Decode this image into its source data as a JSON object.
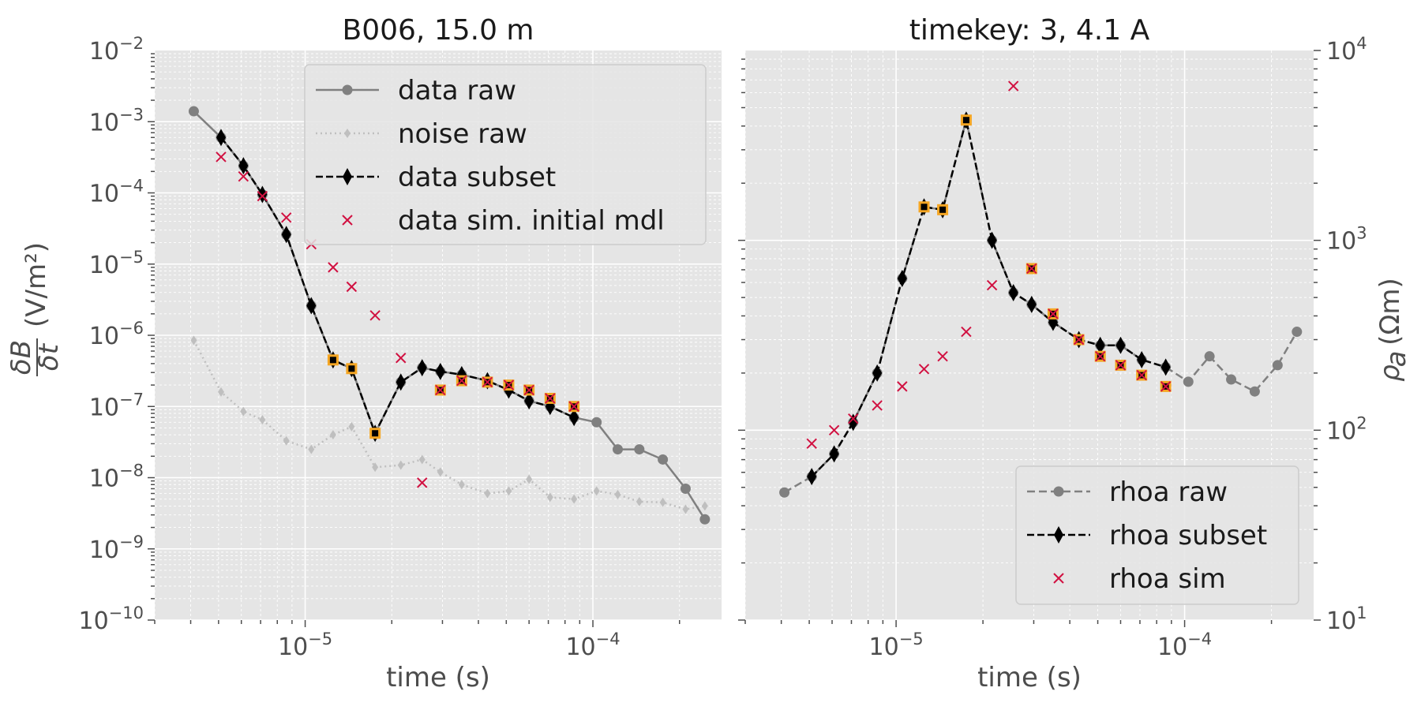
{
  "chart_data": [
    {
      "type": "line",
      "title": "B006, 15.0 m",
      "xlabel": "time (s)",
      "ylabel_frac_num": "δB",
      "ylabel_frac_den": "δt",
      "ylabel_unit": "(V/m²)",
      "xscale": "log",
      "yscale": "log",
      "xlim": [
        3e-06,
        0.00028
      ],
      "ylim": [
        1e-10,
        0.01
      ],
      "x_ticks": [
        {
          "base": "10",
          "exp": "−5",
          "value": 1e-05
        },
        {
          "base": "10",
          "exp": "−4",
          "value": 0.0001
        }
      ],
      "y_ticks": [
        {
          "base": "10",
          "exp": "−10",
          "value": 1e-10
        },
        {
          "base": "10",
          "exp": "−9",
          "value": 1e-09
        },
        {
          "base": "10",
          "exp": "−8",
          "value": 1e-08
        },
        {
          "base": "10",
          "exp": "−7",
          "value": 1e-07
        },
        {
          "base": "10",
          "exp": "−6",
          "value": 1e-06
        },
        {
          "base": "10",
          "exp": "−5",
          "value": 1e-05
        },
        {
          "base": "10",
          "exp": "−4",
          "value": 0.0001
        },
        {
          "base": "10",
          "exp": "−3",
          "value": 0.001
        },
        {
          "base": "10",
          "exp": "−2",
          "value": 0.01
        }
      ],
      "grid": true,
      "legend_position": "top-right",
      "series": [
        {
          "name": "data raw",
          "style": "raw",
          "color": "#808080",
          "x": [
            4.1e-06,
            5.1e-06,
            6.1e-06,
            7.1e-06,
            8.6e-06,
            1.05e-05,
            1.25e-05,
            1.45e-05,
            1.75e-05,
            2.15e-05,
            2.55e-05,
            2.95e-05,
            3.5e-05,
            4.3e-05,
            5.1e-05,
            6e-05,
            7.1e-05,
            8.6e-05,
            0.000103,
            0.000122,
            0.000145,
            0.000175,
            0.00021,
            0.000245
          ],
          "y": [
            0.0014,
            0.0006,
            0.00024,
            9.5e-05,
            2.6e-05,
            2.6e-06,
            4.5e-07,
            3.4e-07,
            4.2e-08,
            2.2e-07,
            3.5e-07,
            3.1e-07,
            2.8e-07,
            2.3e-07,
            1.7e-07,
            1.2e-07,
            1e-07,
            7e-08,
            6e-08,
            2.5e-08,
            2.5e-08,
            1.8e-08,
            7e-09,
            2.6e-09
          ]
        },
        {
          "name": "noise raw",
          "style": "noise",
          "color": "#bfbfbf",
          "x": [
            4.1e-06,
            5.1e-06,
            6.1e-06,
            7.1e-06,
            8.6e-06,
            1.05e-05,
            1.25e-05,
            1.45e-05,
            1.75e-05,
            2.15e-05,
            2.55e-05,
            2.95e-05,
            3.5e-05,
            4.3e-05,
            5.1e-05,
            6e-05,
            7.1e-05,
            8.6e-05,
            0.000103,
            0.000122,
            0.000145,
            0.000175,
            0.00021,
            0.000245
          ],
          "y": [
            8.5e-07,
            1.6e-07,
            8.5e-08,
            6.5e-08,
            3.3e-08,
            2.5e-08,
            4e-08,
            5.2e-08,
            1.4e-08,
            1.5e-08,
            1.8e-08,
            1.2e-08,
            8e-09,
            6e-09,
            6.5e-09,
            9.5e-09,
            5.3e-09,
            5e-09,
            6.5e-09,
            5.8e-09,
            4.6e-09,
            4.5e-09,
            3.6e-09,
            4e-09
          ]
        },
        {
          "name": "data subset",
          "style": "subset",
          "color": "#000000",
          "x": [
            5.1e-06,
            6.1e-06,
            7.1e-06,
            8.6e-06,
            1.05e-05,
            1.25e-05,
            1.45e-05,
            1.75e-05,
            2.15e-05,
            2.55e-05,
            2.95e-05,
            3.5e-05,
            4.3e-05,
            5.1e-05,
            6e-05,
            7.1e-05,
            8.6e-05
          ],
          "y": [
            0.0006,
            0.00024,
            9.5e-05,
            2.6e-05,
            2.6e-06,
            4.5e-07,
            3.4e-07,
            4.2e-08,
            2.2e-07,
            3.5e-07,
            3.1e-07,
            2.8e-07,
            2.3e-07,
            1.7e-07,
            1.2e-07,
            1e-07,
            7e-08
          ]
        },
        {
          "name": "data sim. initial mdl",
          "style": "sim",
          "color": "#d11141",
          "x": [
            5.1e-06,
            6.1e-06,
            7.1e-06,
            8.6e-06,
            1.05e-05,
            1.25e-05,
            1.45e-05,
            1.75e-05,
            2.15e-05,
            2.55e-05,
            2.95e-05,
            3.5e-05,
            4.3e-05,
            5.1e-05,
            6e-05,
            7.1e-05,
            8.6e-05
          ],
          "y": [
            0.00032,
            0.00017,
            9e-05,
            4.5e-05,
            1.9e-05,
            9e-06,
            4.8e-06,
            1.9e-06,
            4.8e-07,
            8.5e-09,
            1.7e-07,
            2.3e-07,
            2.2e-07,
            2e-07,
            1.7e-07,
            1.3e-07,
            1e-07
          ]
        }
      ],
      "highlighted_points": {
        "color": "#f5a623",
        "x": [
          1.25e-05,
          1.45e-05,
          1.75e-05,
          2.95e-05,
          3.5e-05,
          4.3e-05,
          5.1e-05,
          6e-05,
          7.1e-05,
          8.6e-05
        ],
        "y": [
          4.5e-07,
          3.4e-07,
          4.2e-08,
          1.7e-07,
          2.3e-07,
          2.2e-07,
          2e-07,
          1.7e-07,
          1.3e-07,
          1e-07
        ]
      }
    },
    {
      "type": "line",
      "title": "timekey: 3, 4.1 A",
      "xlabel": "time (s)",
      "ylabel_sym": "ρ",
      "ylabel_sub": "a",
      "ylabel_unit": "(Ωm)",
      "xscale": "log",
      "yscale": "log",
      "xlim": [
        3e-06,
        0.00028
      ],
      "ylim": [
        10,
        10000
      ],
      "x_ticks": [
        {
          "base": "10",
          "exp": "−5",
          "value": 1e-05
        },
        {
          "base": "10",
          "exp": "−4",
          "value": 0.0001
        }
      ],
      "y_ticks": [
        {
          "base": "10",
          "exp": "1",
          "value": 10
        },
        {
          "base": "10",
          "exp": "2",
          "value": 100
        },
        {
          "base": "10",
          "exp": "3",
          "value": 1000
        },
        {
          "base": "10",
          "exp": "4",
          "value": 10000
        }
      ],
      "y_axis_side": "right",
      "grid": true,
      "legend_position": "bottom-right",
      "series": [
        {
          "name": "rhoa raw",
          "style": "raw",
          "color": "#808080",
          "x": [
            4.1e-06,
            5.1e-06,
            6.1e-06,
            7.1e-06,
            8.6e-06,
            1.05e-05,
            1.25e-05,
            1.45e-05,
            1.75e-05,
            2.15e-05,
            2.55e-05,
            2.95e-05,
            3.5e-05,
            4.3e-05,
            5.1e-05,
            6e-05,
            7.1e-05,
            8.6e-05,
            0.000103,
            0.000122,
            0.000145,
            0.000175,
            0.00021,
            0.000245
          ],
          "y": [
            47,
            57,
            75,
            110,
            200,
            630,
            1500,
            1450,
            4300,
            1000,
            530,
            460,
            370,
            300,
            280,
            280,
            235,
            215,
            180,
            245,
            185,
            160,
            220,
            330
          ]
        },
        {
          "name": "rhoa subset",
          "style": "subset",
          "color": "#000000",
          "x": [
            5.1e-06,
            6.1e-06,
            7.1e-06,
            8.6e-06,
            1.05e-05,
            1.25e-05,
            1.45e-05,
            1.75e-05,
            2.15e-05,
            2.55e-05,
            2.95e-05,
            3.5e-05,
            4.3e-05,
            5.1e-05,
            6e-05,
            7.1e-05,
            8.6e-05
          ],
          "y": [
            57,
            75,
            110,
            200,
            630,
            1500,
            1450,
            4300,
            1000,
            530,
            460,
            370,
            300,
            280,
            280,
            235,
            215
          ]
        },
        {
          "name": "rhoa sim",
          "style": "sim",
          "color": "#d11141",
          "x": [
            5.1e-06,
            6.1e-06,
            7.1e-06,
            8.6e-06,
            1.05e-05,
            1.25e-05,
            1.45e-05,
            1.75e-05,
            2.15e-05,
            2.55e-05,
            2.95e-05,
            3.5e-05,
            4.3e-05,
            5.1e-05,
            6e-05,
            7.1e-05,
            8.6e-05
          ],
          "y": [
            85,
            100,
            115,
            135,
            170,
            210,
            245,
            330,
            580,
            6500,
            710,
            410,
            300,
            245,
            220,
            195,
            170
          ]
        }
      ],
      "highlighted_points": {
        "color": "#f5a623",
        "x": [
          1.25e-05,
          1.45e-05,
          1.75e-05,
          2.95e-05,
          3.5e-05,
          4.3e-05,
          5.1e-05,
          6e-05,
          7.1e-05,
          8.6e-05
        ],
        "y": [
          1500,
          1450,
          4300,
          710,
          410,
          300,
          245,
          220,
          195,
          170
        ]
      }
    }
  ]
}
